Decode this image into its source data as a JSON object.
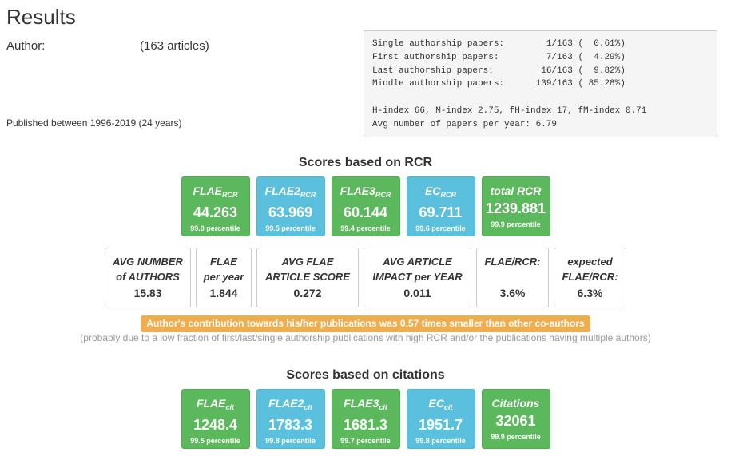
{
  "header": {
    "title": "Results",
    "author_label": "Author:",
    "article_count": "(163 articles)",
    "published": "Published between 1996-2019 (24 years)"
  },
  "stats": {
    "lines": [
      "Single authorship papers:        1/163 (  0.61%)",
      "First authorship papers:         7/163 (  4.29%)",
      "Last authorship papers:         16/163 (  9.82%)",
      "Middle authorship papers:      139/163 ( 85.28%)",
      "",
      "H-index 66, M-index 2.75, fH-index 17, fM-index 0.71",
      "Avg number of papers per year: 6.79"
    ]
  },
  "rcr": {
    "title": "Scores based on RCR",
    "scores": [
      {
        "label": "FLAE",
        "sub": "RCR",
        "value": "44.263",
        "percentile": "99.0 percentile",
        "color": "green"
      },
      {
        "label": "FLAE2",
        "sub": "RCR",
        "value": "63.969",
        "percentile": "99.5 percentile",
        "color": "blue"
      },
      {
        "label": "FLAE3",
        "sub": "RCR",
        "value": "60.144",
        "percentile": "99.4 percentile",
        "color": "green"
      },
      {
        "label": "EC",
        "sub": "RCR",
        "value": "69.711",
        "percentile": "99.6 percentile",
        "color": "blue"
      },
      {
        "label": "total RCR",
        "sub": "",
        "value": "1239.881",
        "percentile": "99.9 percentile",
        "color": "green"
      }
    ],
    "metrics": [
      {
        "label": "AVG NUMBER\nof AUTHORS",
        "value": "15.83",
        "w": 108
      },
      {
        "label": "FLAE\nper year",
        "value": "1.844",
        "w": 70
      },
      {
        "label": "AVG FLAE\nARTICLE SCORE",
        "value": "0.272",
        "w": 128
      },
      {
        "label": "AVG ARTICLE\nIMPACT per YEAR",
        "value": "0.011",
        "w": 135
      },
      {
        "label": "FLAE/RCR:",
        "value": "3.6%",
        "w": 91
      },
      {
        "label": "expected\nFLAE/RCR:",
        "value": "6.3%",
        "w": 91
      }
    ],
    "warning": "Author's contribution towards his/her publications was 0.57 times smaller than other co-authors",
    "note": "(probably due to a low fraction of first/last/single authorship publications with high RCR and/or the publications having multiple authors)"
  },
  "citations": {
    "title": "Scores based on citations",
    "scores": [
      {
        "label": "FLAE",
        "sub": "cit",
        "value": "1248.4",
        "percentile": "99.5 percentile",
        "color": "green"
      },
      {
        "label": "FLAE2",
        "sub": "cit",
        "value": "1783.3",
        "percentile": "99.8 percentile",
        "color": "blue"
      },
      {
        "label": "FLAE3",
        "sub": "cit",
        "value": "1681.3",
        "percentile": "99.7 percentile",
        "color": "green"
      },
      {
        "label": "EC",
        "sub": "cit",
        "value": "1951.7",
        "percentile": "99.8 percentile",
        "color": "blue"
      },
      {
        "label": "Citations",
        "sub": "",
        "value": "32061",
        "percentile": "99.9 percentile",
        "color": "green"
      }
    ]
  }
}
